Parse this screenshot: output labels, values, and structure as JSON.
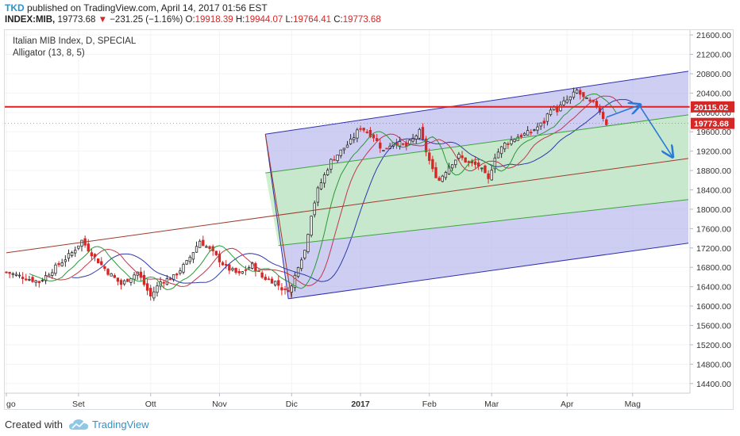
{
  "header": {
    "author": "TKD",
    "published": "published on TradingView.com, April 14, 2017 01:56 EST",
    "symbol": "INDEX:MIB,",
    "last": "19773.68",
    "arrow": "▼",
    "change": "−231.25 (−1.16%)",
    "o_label": "O:",
    "o_value": "19918.39",
    "h_label": "H:",
    "h_value": "19944.07",
    "l_label": "L:",
    "l_value": "19764.41",
    "c_label": "C:",
    "c_value": "19773.68"
  },
  "legend": {
    "title": "Italian MIB Index, D, SPECIAL",
    "indicator": "Alligator (13, 8, 5)"
  },
  "footer": {
    "created": "Created with",
    "brand": "TradingView"
  },
  "colors": {
    "up": "#2c2c2c",
    "down": "#d62727",
    "channel_blue": "#2f2fb0",
    "channel_fill": "#b4b4ec",
    "green_fill": "#c5ecc5",
    "green_line": "#3ea33e",
    "median": "#9c3b2b",
    "horizontal": "#e02020",
    "arrow": "#2a7ad6",
    "jaw": "#2e3aa8",
    "teeth": "#c2364a",
    "lips": "#2a9a35",
    "price_label_bg": "#d62727"
  },
  "chart_data": {
    "type": "candlestick",
    "title": "Italian MIB Index, D, SPECIAL",
    "series_name": "INDEX:MIB",
    "ylim": [
      14200,
      21700
    ],
    "y_ticks": [
      21600,
      21200,
      20800,
      20400,
      20000,
      19600,
      19200,
      18800,
      18400,
      18000,
      17600,
      17200,
      16800,
      16400,
      16000,
      15600,
      15200,
      14800,
      14400
    ],
    "y_tick_labels": [
      "21600.00",
      "21200.00",
      "20800.00",
      "20400.00",
      "20000.00",
      "19600.00",
      "19200.00",
      "18800.00",
      "18400.00",
      "18000.00",
      "17600.00",
      "17200.00",
      "16800.00",
      "16400.00",
      "16000.00",
      "15600.00",
      "15200.00",
      "14800.00",
      "14400.00"
    ],
    "x_ticks": [
      "go",
      "Set",
      "Ott",
      "Nov",
      "Dic",
      "2017",
      "Feb",
      "Mar",
      "Apr",
      "Mag"
    ],
    "x_tick_days": [
      0,
      22,
      44,
      65,
      87,
      108,
      129,
      148,
      171,
      191
    ],
    "x_range_days": [
      0,
      208
    ],
    "price_labels": [
      {
        "value": 20115.02,
        "text": "20115.02"
      },
      {
        "value": 19773.68,
        "text": "19773.68"
      }
    ],
    "key_points": [
      {
        "day": 0,
        "close": 16700
      },
      {
        "day": 5,
        "close": 16600
      },
      {
        "day": 10,
        "close": 16500
      },
      {
        "day": 15,
        "close": 16800
      },
      {
        "day": 20,
        "close": 17100
      },
      {
        "day": 23,
        "close": 17350
      },
      {
        "day": 27,
        "close": 17000
      },
      {
        "day": 31,
        "close": 16700
      },
      {
        "day": 35,
        "close": 16450
      },
      {
        "day": 40,
        "close": 16700
      },
      {
        "day": 44,
        "close": 16200
      },
      {
        "day": 47,
        "close": 16500
      },
      {
        "day": 51,
        "close": 16600
      },
      {
        "day": 55,
        "close": 16900
      },
      {
        "day": 59,
        "close": 17350
      },
      {
        "day": 63,
        "close": 17100
      },
      {
        "day": 67,
        "close": 16800
      },
      {
        "day": 71,
        "close": 16650
      },
      {
        "day": 75,
        "close": 16850
      },
      {
        "day": 78,
        "close": 16600
      },
      {
        "day": 82,
        "close": 16500
      },
      {
        "day": 85,
        "close": 16300
      },
      {
        "day": 87,
        "close": 16400
      },
      {
        "day": 89,
        "close": 16850
      },
      {
        "day": 91,
        "close": 17150
      },
      {
        "day": 93,
        "close": 17900
      },
      {
        "day": 95,
        "close": 18400
      },
      {
        "day": 97,
        "close": 18700
      },
      {
        "day": 99,
        "close": 19000
      },
      {
        "day": 102,
        "close": 19200
      },
      {
        "day": 105,
        "close": 19400
      },
      {
        "day": 108,
        "close": 19700
      },
      {
        "day": 112,
        "close": 19500
      },
      {
        "day": 115,
        "close": 19200
      },
      {
        "day": 118,
        "close": 19400
      },
      {
        "day": 122,
        "close": 19300
      },
      {
        "day": 126,
        "close": 19600
      },
      {
        "day": 128,
        "close": 19200
      },
      {
        "day": 130,
        "close": 18800
      },
      {
        "day": 132,
        "close": 18600
      },
      {
        "day": 135,
        "close": 18900
      },
      {
        "day": 138,
        "close": 19100
      },
      {
        "day": 141,
        "close": 18950
      },
      {
        "day": 144,
        "close": 18900
      },
      {
        "day": 147,
        "close": 18600
      },
      {
        "day": 149,
        "close": 19100
      },
      {
        "day": 152,
        "close": 19350
      },
      {
        "day": 156,
        "close": 19500
      },
      {
        "day": 160,
        "close": 19600
      },
      {
        "day": 164,
        "close": 19800
      },
      {
        "day": 166,
        "close": 20100
      },
      {
        "day": 168,
        "close": 20050
      },
      {
        "day": 170,
        "close": 20200
      },
      {
        "day": 172,
        "close": 20300
      },
      {
        "day": 174,
        "close": 20450
      },
      {
        "day": 176,
        "close": 20300
      },
      {
        "day": 178,
        "close": 20200
      },
      {
        "day": 180,
        "close": 20150
      },
      {
        "day": 182,
        "close": 19900
      },
      {
        "day": 183,
        "close": 19773.68
      }
    ],
    "drawings": {
      "horizontal_level": 20115.02,
      "channel_top": [
        {
          "day": 79,
          "price": 19550
        },
        {
          "day": 208,
          "price": 20850
        }
      ],
      "channel_bottom": [
        {
          "day": 86,
          "price": 16150
        },
        {
          "day": 208,
          "price": 17300
        }
      ],
      "median_line": [
        {
          "day": 0,
          "price": 17100
        },
        {
          "day": 208,
          "price": 19050
        }
      ],
      "green_top": [
        {
          "day": 79,
          "price": 18750
        },
        {
          "day": 208,
          "price": 19950
        }
      ],
      "green_bottom": [
        {
          "day": 83,
          "price": 17250
        },
        {
          "day": 208,
          "price": 18200
        }
      ],
      "projection": [
        {
          "day": 183,
          "price": 19900
        },
        {
          "day": 193,
          "price": 20150
        },
        {
          "day": 203,
          "price": 19100
        }
      ]
    }
  }
}
